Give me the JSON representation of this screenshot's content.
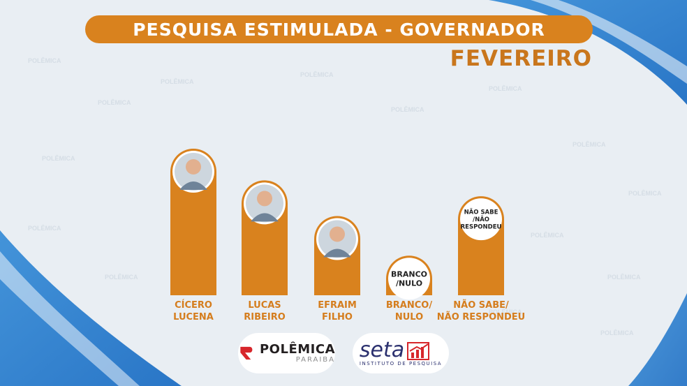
{
  "header": {
    "title": "PESQUISA ESTIMULADA - GOVERNADOR",
    "subtitle": "FEVEREIRO"
  },
  "chart_data": {
    "type": "bar",
    "categories": [
      "CÍCERO LUCENA",
      "LUCAS RIBEIRO",
      "EFRAIM FILHO",
      "BRANCO/ NULO",
      "NÃO SABE/ NÃO RESPONDEU"
    ],
    "category_lines": [
      [
        "CÍCERO",
        "LUCENA"
      ],
      [
        "LUCAS",
        "RIBEIRO"
      ],
      [
        "EFRAIM",
        "FILHO"
      ],
      [
        "BRANCO/",
        "NULO"
      ],
      [
        "NÃO SABE/",
        "NÃO RESPONDEU"
      ]
    ],
    "values": [
      37,
      29,
      20,
      10,
      25
    ],
    "badges": [
      {
        "kind": "photo"
      },
      {
        "kind": "photo"
      },
      {
        "kind": "photo"
      },
      {
        "kind": "text",
        "lines": [
          "BRANCO",
          "/NULO"
        ]
      },
      {
        "kind": "text",
        "lines": [
          "NÃO SABE",
          "/NÃO",
          "RESPONDEU"
        ]
      }
    ],
    "bar_color": "#d9821e",
    "label_color": "#d57d1d"
  },
  "logos": {
    "polemica": {
      "name": "POLÊMICA",
      "sub": "PARAIBA",
      "icon": "polemica-logo-icon"
    },
    "seta": {
      "name": "seta",
      "sub": "INSTITUTO DE PESQUISA",
      "icon": "bar-chart-arrow-icon"
    }
  }
}
